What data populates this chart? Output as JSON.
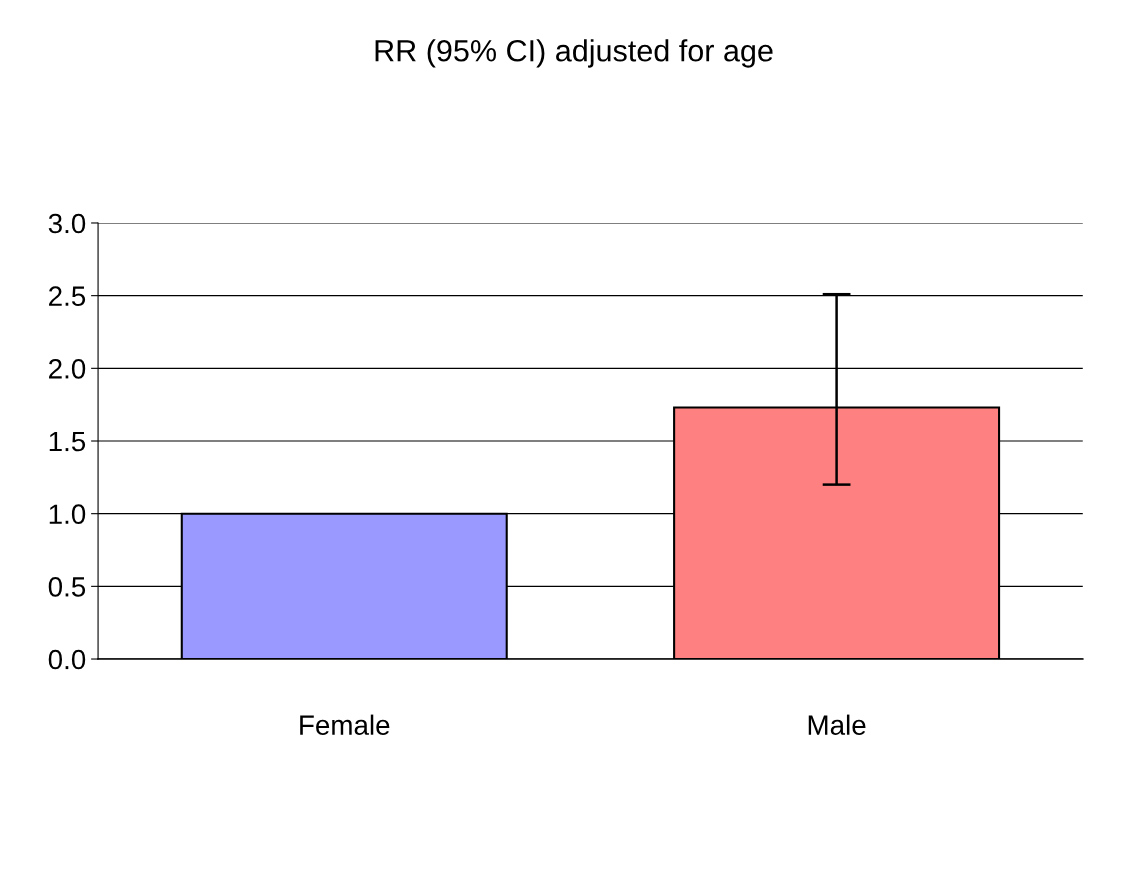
{
  "chart_data": {
    "type": "bar",
    "title": "RR (95% CI) adjusted for age",
    "categories": [
      "Female",
      "Male"
    ],
    "values": [
      1.0,
      1.73
    ],
    "colors": [
      "#9999ff",
      "#ff8080"
    ],
    "errors": [
      null,
      [
        1.2,
        2.51
      ]
    ],
    "ylim": [
      0,
      3.0
    ],
    "yticks": [
      {
        "value": 0,
        "label": "0.0"
      },
      {
        "value": 0.5,
        "label": "0.5"
      },
      {
        "value": 1.0,
        "label": "1.0"
      },
      {
        "value": 1.5,
        "label": "1.5"
      },
      {
        "value": 2.0,
        "label": "2.0"
      },
      {
        "value": 2.5,
        "label": "2.5"
      },
      {
        "value": 3.0,
        "label": "3.0"
      }
    ],
    "grid": "y",
    "legend": false
  }
}
